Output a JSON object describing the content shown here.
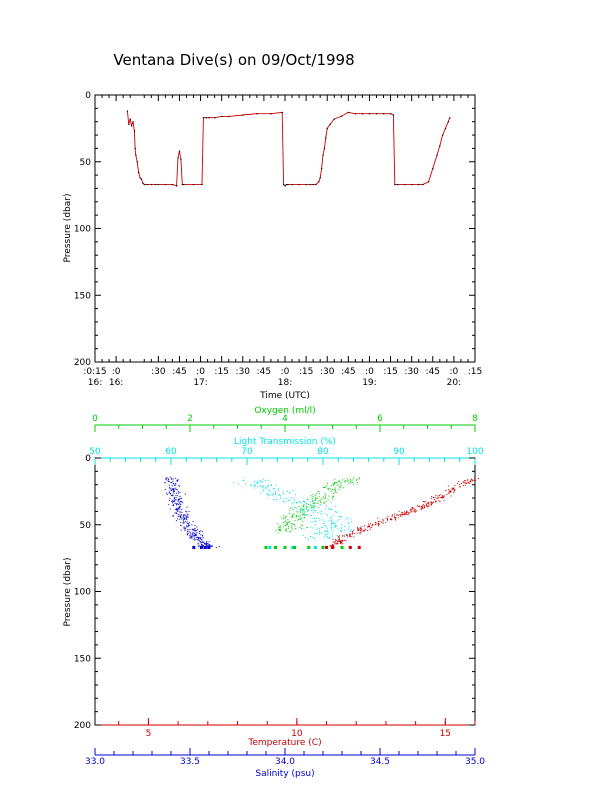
{
  "page": {
    "title": "Ventana Dive(s) on 09/Oct/1998"
  },
  "colors": {
    "frame": "#000000",
    "trace": "#cc0000",
    "temperature": "#cc0000",
    "oxygen": "#00cc00",
    "light_transmission": "#00e5e5",
    "salinity": "#0000cc"
  },
  "chart_data": [
    {
      "type": "line",
      "title": "Ventana Dive(s) on 09/Oct/1998",
      "xlabel": "Time (UTC)",
      "ylabel": "Pressure (dbar)",
      "y_inverted": true,
      "ylim": [
        0,
        200
      ],
      "y_ticks": [
        "0",
        "50",
        "100",
        "150",
        "200"
      ],
      "xlim_minutes_after_1600": [
        -15,
        255
      ],
      "x_ticks": [
        {
          "minutes": -15,
          "label": ":0:15",
          "sub": "16:"
        },
        {
          "minutes": 0,
          "label": ":0",
          "sub": "16:"
        },
        {
          "minutes": 30,
          "label": ":30",
          "sub": ""
        },
        {
          "minutes": 45,
          "label": ":45",
          "sub": ""
        },
        {
          "minutes": 60,
          "label": ":0",
          "sub": "17:"
        },
        {
          "minutes": 75,
          "label": ":15",
          "sub": ""
        },
        {
          "minutes": 90,
          "label": ":30",
          "sub": ""
        },
        {
          "minutes": 105,
          "label": ":45",
          "sub": ""
        },
        {
          "minutes": 120,
          "label": ":0",
          "sub": "18:"
        },
        {
          "minutes": 135,
          "label": ":15",
          "sub": ""
        },
        {
          "minutes": 150,
          "label": ":30",
          "sub": ""
        },
        {
          "minutes": 165,
          "label": ":45",
          "sub": ""
        },
        {
          "minutes": 180,
          "label": ":0",
          "sub": "19:"
        },
        {
          "minutes": 195,
          "label": ":15",
          "sub": ""
        },
        {
          "minutes": 210,
          "label": ":30",
          "sub": ""
        },
        {
          "minutes": 225,
          "label": ":45",
          "sub": ""
        },
        {
          "minutes": 240,
          "label": ":0",
          "sub": "20:"
        },
        {
          "minutes": 255,
          "label": ":15",
          "sub": ""
        }
      ],
      "series": [
        {
          "x_minutes_after_1600": [
            8,
            9,
            10,
            11,
            12,
            13,
            13.5,
            14,
            15,
            16,
            17,
            18,
            19,
            20,
            22,
            25,
            28,
            30,
            35,
            40,
            43,
            44,
            45,
            46,
            47,
            48,
            55,
            61,
            62,
            64,
            66,
            70,
            75,
            80,
            90,
            100,
            110,
            118,
            119,
            120,
            121,
            122,
            125,
            130,
            135,
            138,
            140,
            142,
            144,
            145,
            146,
            147,
            148,
            149,
            150,
            152,
            155,
            160,
            165,
            170,
            175,
            180,
            185,
            190,
            195,
            197,
            198,
            200,
            205,
            210,
            215,
            218,
            222,
            225,
            228,
            230,
            232,
            234,
            236,
            237
          ],
          "y_dbar": [
            12,
            22,
            18,
            23,
            20,
            27,
            40,
            45,
            50,
            58,
            62,
            63,
            66,
            67,
            67,
            67,
            67,
            67,
            67,
            67,
            68,
            47,
            42,
            48,
            67,
            67,
            67,
            67,
            17,
            17,
            17,
            17,
            16,
            16,
            15,
            14,
            14,
            13,
            67,
            68,
            67,
            67,
            67,
            67,
            67,
            67,
            67,
            67,
            65,
            62,
            55,
            45,
            40,
            32,
            25,
            22,
            18,
            16,
            13,
            14,
            14,
            14,
            14,
            14,
            14,
            15,
            67,
            67,
            67,
            67,
            67,
            67,
            65,
            55,
            45,
            38,
            30,
            25,
            20,
            17
          ]
        }
      ]
    },
    {
      "type": "scatter",
      "ylabel": "Pressure (dbar)",
      "y_inverted": true,
      "ylim": [
        0,
        200
      ],
      "y_ticks": [
        "0",
        "50",
        "100",
        "150",
        "200"
      ],
      "axes": {
        "oxygen": {
          "label": "Oxygen (ml/l)",
          "range": [
            0,
            8
          ],
          "ticks": [
            "0",
            "2",
            "4",
            "6",
            "8"
          ]
        },
        "light_transmission": {
          "label": "Light Transmission (%)",
          "range": [
            50,
            100
          ],
          "ticks": [
            "50",
            "60",
            "70",
            "80",
            "90",
            "100"
          ]
        },
        "temperature": {
          "label": "Temperature (C)",
          "range": [
            3.2,
            16.0
          ],
          "ticks": [
            "5",
            "10",
            "15"
          ]
        },
        "salinity": {
          "label": "Salinity (psu)",
          "range": [
            33.0,
            35.0
          ],
          "ticks": [
            "33.0",
            "33.5",
            "34.0",
            "34.5",
            "35.0"
          ]
        }
      },
      "series": [
        {
          "name": "Salinity (psu)",
          "color": "#0000cc",
          "profile_x": [
            33.4,
            33.41,
            33.42,
            33.43,
            33.44,
            33.46,
            33.48,
            33.51,
            33.54,
            33.57,
            33.6
          ],
          "profile_y": [
            15,
            22,
            28,
            34,
            40,
            45,
            50,
            55,
            60,
            64,
            67
          ],
          "spread": 0.06,
          "points": 330,
          "cluster_x": [
            33.52,
            33.56,
            33.58,
            33.6
          ],
          "cluster_y": [
            67,
            67,
            67,
            67
          ]
        },
        {
          "name": "Light Transmission (%)",
          "color": "#00e5e5",
          "profile_x": [
            70,
            72,
            74,
            76,
            78,
            79,
            80,
            81,
            81,
            80
          ],
          "profile_y": [
            15,
            20,
            25,
            30,
            35,
            40,
            45,
            50,
            55,
            60
          ],
          "spread": 5,
          "points": 260,
          "cluster_x": [
            73,
            76,
            79,
            80
          ],
          "cluster_y": [
            67,
            67,
            67,
            67
          ]
        },
        {
          "name": "Oxygen (ml/l)",
          "color": "#00cc00",
          "profile_x": [
            5.4,
            5.1,
            4.9,
            4.7,
            4.5,
            4.3,
            4.2,
            4.1,
            4.0
          ],
          "profile_y": [
            15,
            20,
            25,
            30,
            35,
            40,
            45,
            50,
            55
          ],
          "spread": 0.45,
          "points": 220,
          "cluster_x": [
            3.6,
            3.8,
            4.0,
            4.2,
            4.5,
            4.8,
            5.2
          ],
          "cluster_y": [
            67,
            67,
            67,
            67,
            67,
            67,
            67
          ]
        },
        {
          "name": "Temperature (C)",
          "color": "#cc0000",
          "profile_x": [
            16.0,
            15.5,
            15.0,
            14.5,
            14.0,
            13.5,
            13.0,
            12.5,
            12.0,
            11.5,
            11.2
          ],
          "profile_y": [
            15,
            20,
            27,
            33,
            38,
            42,
            46,
            50,
            55,
            60,
            66
          ],
          "spread": 0.35,
          "points": 340,
          "cluster_x": [
            11.0,
            11.2,
            11.8,
            12.1
          ],
          "cluster_y": [
            67,
            67,
            67,
            67
          ]
        }
      ]
    }
  ]
}
